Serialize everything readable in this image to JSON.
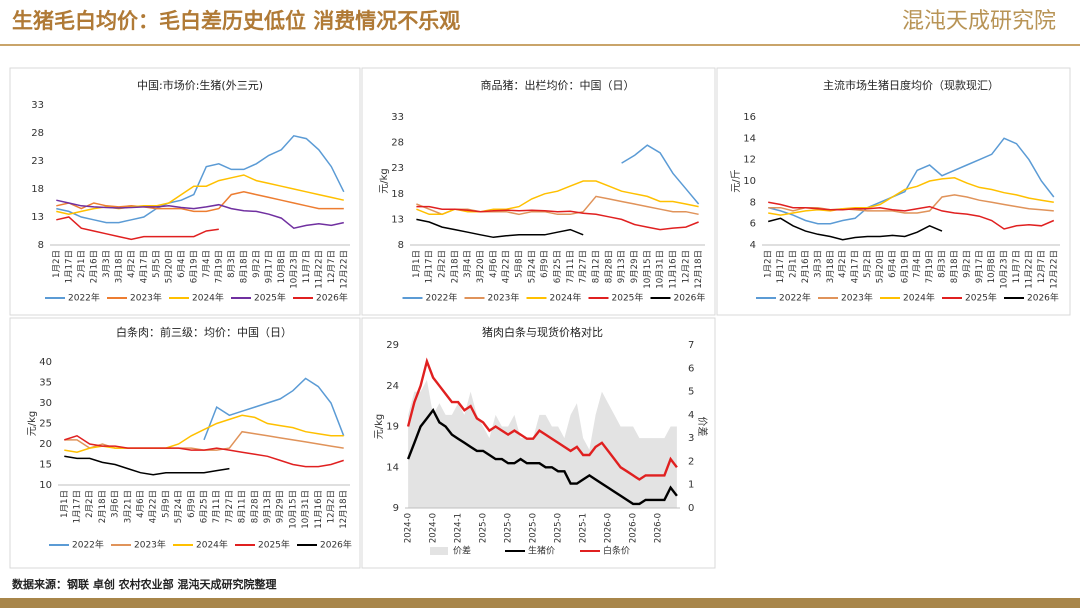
{
  "header": {
    "title": "生猪毛白均价：毛白差历史低位 消费情况不乐观",
    "logo": "混沌天成研究院"
  },
  "footer": {
    "source": "数据来源：钢联 卓创 农村农业部 混沌天成研究院整理"
  },
  "chart_data": [
    {
      "type": "line",
      "title": "中国:市场价:生猪(外三元)",
      "grid": false,
      "categories": [
        "1月2日",
        "1月17日",
        "2月1日",
        "2月16日",
        "3月3日",
        "3月18日",
        "4月2日",
        "4月17日",
        "5月5日",
        "5月20日",
        "6月4日",
        "6月19日",
        "7月4日",
        "7月19日",
        "8月3日",
        "8月18日",
        "9月2日",
        "9月17日",
        "10月8日",
        "10月23日",
        "11月7日",
        "11月22日",
        "12月7日",
        "12月22日"
      ],
      "ylim": [
        8,
        33
      ],
      "yticks": [
        8,
        13,
        18,
        23,
        28,
        33
      ],
      "series": [
        {
          "name": "2022年",
          "color": "#5b9bd5",
          "values": [
            14.5,
            14,
            13,
            12.5,
            12,
            12,
            12.5,
            13,
            14.5,
            15.5,
            16,
            17,
            22,
            22.5,
            21.5,
            21.5,
            22.5,
            24,
            25,
            27.5,
            27,
            25,
            22,
            17.5
          ]
        },
        {
          "name": "2023年",
          "color": "#ed7d31",
          "values": [
            15,
            15.5,
            14.5,
            15.5,
            15,
            14.8,
            15,
            14.8,
            14.5,
            14.5,
            14.5,
            14,
            14,
            14.5,
            17,
            17.5,
            17,
            16.5,
            16,
            15.5,
            15,
            14.5,
            14.5,
            14.5
          ]
        },
        {
          "name": "2024年",
          "color": "#ffc000",
          "values": [
            14,
            13.5,
            14,
            14.5,
            14.8,
            14.5,
            14.8,
            15,
            15,
            15.5,
            17,
            18.5,
            18.5,
            19.5,
            20,
            20.5,
            19.5,
            19,
            18.5,
            18,
            17.5,
            17,
            16.5,
            16
          ]
        },
        {
          "name": "2025年",
          "color": "#7030a0",
          "values": [
            16,
            15.5,
            15,
            14.8,
            14.7,
            14.6,
            14.7,
            14.8,
            14.8,
            15,
            14.7,
            14.5,
            14.8,
            15.2,
            14.5,
            14.1,
            14,
            13.5,
            12.8,
            11,
            11.5,
            11.8,
            11.5,
            12
          ]
        },
        {
          "name": "2026年",
          "color": "#e02020",
          "values": [
            12.5,
            13,
            11,
            10.5,
            10,
            9.5,
            9,
            9.5,
            9.5,
            9.5,
            9.5,
            9.5,
            10.5,
            10.8,
            null,
            null,
            null,
            null,
            null,
            null,
            null,
            null,
            null,
            null
          ]
        }
      ]
    },
    {
      "type": "line",
      "title": "商品猪：出栏均价：中国（日）",
      "ylabel": "元/kg",
      "grid": false,
      "categories": [
        "1月1日",
        "1月17日",
        "2月2日",
        "2月18日",
        "3月4日",
        "3月20日",
        "4月6日",
        "4月22日",
        "5月8日",
        "5月24日",
        "6月9日",
        "6月25日",
        "7月11日",
        "7月27日",
        "8月12日",
        "8月28日",
        "9月13日",
        "9月29日",
        "10月15日",
        "10月31日",
        "11月16日",
        "12月2日",
        "12月18日"
      ],
      "ylim": [
        8,
        33
      ],
      "yticks": [
        8,
        13,
        18,
        23,
        28,
        33
      ],
      "series": [
        {
          "name": "2022年",
          "color": "#5b9bd5",
          "values": [
            null,
            null,
            null,
            null,
            null,
            null,
            null,
            null,
            null,
            null,
            null,
            null,
            null,
            null,
            null,
            null,
            24,
            25.5,
            27.5,
            26,
            22,
            19,
            16
          ]
        },
        {
          "name": "2023年",
          "color": "#e0935a",
          "values": [
            16,
            15,
            14,
            15,
            15,
            14.5,
            14.5,
            14.5,
            14,
            14.5,
            14.5,
            14,
            14,
            14.5,
            17.5,
            17,
            16.5,
            16,
            15.5,
            15,
            14.5,
            14.5,
            14
          ]
        },
        {
          "name": "2024年",
          "color": "#ffc000",
          "values": [
            15,
            14,
            14,
            15,
            14.5,
            14.5,
            15,
            15,
            15.5,
            17,
            18,
            18.5,
            19.5,
            20.5,
            20.5,
            19.5,
            18.5,
            18,
            17.5,
            16.5,
            16.5,
            16,
            15.5
          ]
        },
        {
          "name": "2025年",
          "color": "#e02020",
          "values": [
            15.5,
            15.5,
            15,
            15,
            14.8,
            14.5,
            14.7,
            14.8,
            14.7,
            14.8,
            14.7,
            14.5,
            14.6,
            14.2,
            14,
            13.5,
            13,
            12,
            11.5,
            11,
            11.3,
            11.5,
            12.5
          ]
        },
        {
          "name": "2026年",
          "color": "#000000",
          "values": [
            13,
            12.5,
            11.5,
            11,
            10.5,
            10,
            9.5,
            9.8,
            10,
            10,
            10,
            10.5,
            11,
            10,
            null,
            null,
            null,
            null,
            null,
            null,
            null,
            null,
            null
          ]
        }
      ]
    },
    {
      "type": "line",
      "title": "主流市场生猪日度均价（现款现汇）",
      "ylabel": "元/斤",
      "grid": false,
      "categories": [
        "1月2日",
        "1月17日",
        "2月1日",
        "2月16日",
        "3月3日",
        "3月18日",
        "4月2日",
        "4月17日",
        "5月2日",
        "5月20日",
        "6月4日",
        "6月19日",
        "7月4日",
        "7月19日",
        "8月3日",
        "8月18日",
        "9月2日",
        "9月17日",
        "10月8日",
        "10月23日",
        "11月7日",
        "11月22日",
        "12月7日",
        "12月22日"
      ],
      "ylim": [
        4,
        16
      ],
      "yticks": [
        4,
        6,
        8,
        10,
        12,
        14,
        16
      ],
      "series": [
        {
          "name": "2022年",
          "color": "#5b9bd5",
          "values": [
            7.5,
            7.2,
            6.8,
            6.3,
            6,
            6,
            6.3,
            6.5,
            7.5,
            8,
            8.5,
            9,
            11,
            11.5,
            10.5,
            11,
            11.5,
            12,
            12.5,
            14,
            13.5,
            12,
            10,
            8.5
          ]
        },
        {
          "name": "2023年",
          "color": "#e0935a",
          "values": [
            7.5,
            7.5,
            7.2,
            7.5,
            7.5,
            7.3,
            7.4,
            7.3,
            7.2,
            7.2,
            7.2,
            7,
            7,
            7.2,
            8.5,
            8.7,
            8.5,
            8.2,
            8,
            7.8,
            7.6,
            7.4,
            7.3,
            7.2
          ]
        },
        {
          "name": "2024年",
          "color": "#ffc000",
          "values": [
            7,
            6.8,
            7,
            7.2,
            7.3,
            7.2,
            7.4,
            7.5,
            7.5,
            7.8,
            8.5,
            9.2,
            9.5,
            10,
            10.2,
            10.3,
            9.8,
            9.4,
            9.2,
            8.9,
            8.7,
            8.4,
            8.2,
            8
          ]
        },
        {
          "name": "2025年",
          "color": "#e02020",
          "values": [
            8,
            7.8,
            7.5,
            7.5,
            7.4,
            7.3,
            7.3,
            7.4,
            7.4,
            7.5,
            7.3,
            7.2,
            7.4,
            7.6,
            7.2,
            7,
            6.9,
            6.7,
            6.3,
            5.5,
            5.8,
            5.9,
            5.8,
            6.3
          ]
        },
        {
          "name": "2026年",
          "color": "#000000",
          "values": [
            6.2,
            6.5,
            5.8,
            5.3,
            5,
            4.8,
            4.5,
            4.7,
            4.8,
            4.8,
            4.9,
            4.8,
            5.2,
            5.8,
            5.3,
            null,
            null,
            null,
            null,
            null,
            null,
            null,
            null,
            null
          ]
        }
      ]
    },
    {
      "type": "line",
      "title": "白条肉：前三级：均价：中国（日）",
      "ylabel": "元/kg",
      "grid": false,
      "categories": [
        "1月1日",
        "1月17日",
        "2月2日",
        "2月18日",
        "3月6日",
        "3月21日",
        "4月6日",
        "4月22日",
        "5月9日",
        "5月24日",
        "6月9日",
        "6月25日",
        "7月11日",
        "7月27日",
        "8月11日",
        "8月28日",
        "9月13日",
        "9月29日",
        "10月15日",
        "10月31日",
        "11月16日",
        "12月2日",
        "12月18日"
      ],
      "ylim": [
        10,
        40
      ],
      "yticks": [
        10,
        15,
        20,
        25,
        30,
        35,
        40
      ],
      "series": [
        {
          "name": "2022年",
          "color": "#5b9bd5",
          "values": [
            null,
            null,
            null,
            null,
            null,
            null,
            null,
            null,
            null,
            null,
            null,
            21,
            29,
            27,
            28,
            29,
            30,
            31,
            33,
            36,
            34,
            30,
            22
          ]
        },
        {
          "name": "2023年",
          "color": "#e0935a",
          "values": [
            21,
            21,
            19,
            20,
            19,
            19,
            19,
            19,
            19,
            19,
            19,
            18.5,
            18.5,
            19,
            23,
            22.5,
            22,
            21.5,
            21,
            20.5,
            20,
            19.5,
            19
          ]
        },
        {
          "name": "2024年",
          "color": "#ffc000",
          "values": [
            18.5,
            18,
            19,
            19.5,
            19,
            19,
            19,
            19,
            19,
            20,
            22,
            23.5,
            25,
            26,
            27,
            26.5,
            25,
            24.5,
            24,
            23,
            22.5,
            22,
            22
          ]
        },
        {
          "name": "2025年",
          "color": "#e02020",
          "values": [
            21,
            22,
            20,
            19.5,
            19.5,
            19,
            19,
            19,
            19,
            19,
            18.5,
            18.5,
            19,
            18.5,
            18,
            17.5,
            17,
            16,
            15,
            14.5,
            14.5,
            15,
            16
          ]
        },
        {
          "name": "2026年",
          "color": "#000000",
          "values": [
            17,
            16.5,
            16.5,
            15.5,
            15,
            14,
            13,
            12.5,
            13,
            13,
            13,
            13,
            13.5,
            14,
            null,
            null,
            null,
            null,
            null,
            null,
            null,
            null,
            null
          ]
        }
      ]
    },
    {
      "type": "line",
      "title": "猪肉白条与现货价格对比",
      "ylabel": "元/kg",
      "y2label": "价差",
      "grid": false,
      "categories": [
        "2024-0",
        null,
        null,
        null,
        "2024-0",
        null,
        null,
        null,
        "2024-1",
        null,
        null,
        null,
        "2025-0",
        null,
        null,
        null,
        "2025-0",
        null,
        null,
        null,
        "2025-0",
        null,
        null,
        null,
        "2025-0",
        null,
        null,
        null,
        "2025-1",
        null,
        null,
        null,
        "2026-0",
        null,
        null,
        null,
        "2026-0",
        null,
        null,
        null,
        "2026-0",
        null,
        null,
        null
      ],
      "ylim": [
        9,
        29
      ],
      "yticks": [
        9,
        14,
        19,
        24,
        29
      ],
      "y2lim": [
        0,
        7
      ],
      "y2ticks": [
        0,
        1,
        2,
        3,
        4,
        5,
        6,
        7
      ],
      "series": [
        {
          "name": "价差",
          "color": "#e3e3e3",
          "style": "area",
          "axis": "y2",
          "values": [
            4,
            5,
            5,
            5.5,
            4,
            4.5,
            4,
            4,
            4.5,
            4,
            5,
            4,
            3.5,
            3,
            4,
            3.5,
            3.5,
            4,
            3,
            3,
            3,
            4,
            4,
            3.5,
            3.5,
            3,
            4,
            4.5,
            3,
            2.5,
            4,
            5,
            4.5,
            4,
            3.5,
            3.5,
            3.5,
            3,
            3,
            3,
            3,
            3,
            3.5,
            3.5
          ]
        },
        {
          "name": "生猪价",
          "color": "#000000",
          "values": [
            15,
            17,
            19,
            20,
            21,
            19.5,
            19,
            18,
            17.5,
            17,
            16.5,
            16,
            16,
            15.5,
            15,
            15,
            14.5,
            14.5,
            15,
            14.5,
            14.5,
            14.5,
            14,
            14,
            13.5,
            13.5,
            12,
            12,
            12.5,
            13,
            12.5,
            12,
            11.5,
            11,
            10.5,
            10,
            9.5,
            9.5,
            10,
            10,
            10,
            10,
            11.5,
            10.5
          ]
        },
        {
          "name": "白条价",
          "color": "#e02020",
          "values": [
            19,
            22,
            24,
            27,
            25,
            24,
            23,
            22,
            22,
            21,
            21.5,
            20,
            19.5,
            18.5,
            19,
            18.5,
            18,
            18.5,
            18,
            17.5,
            17.5,
            18.5,
            18,
            17.5,
            17,
            16.5,
            16,
            16.5,
            15.5,
            15.5,
            16.5,
            17,
            16,
            15,
            14,
            13.5,
            13,
            12.5,
            13,
            13,
            13,
            13,
            15,
            14
          ]
        }
      ]
    }
  ]
}
